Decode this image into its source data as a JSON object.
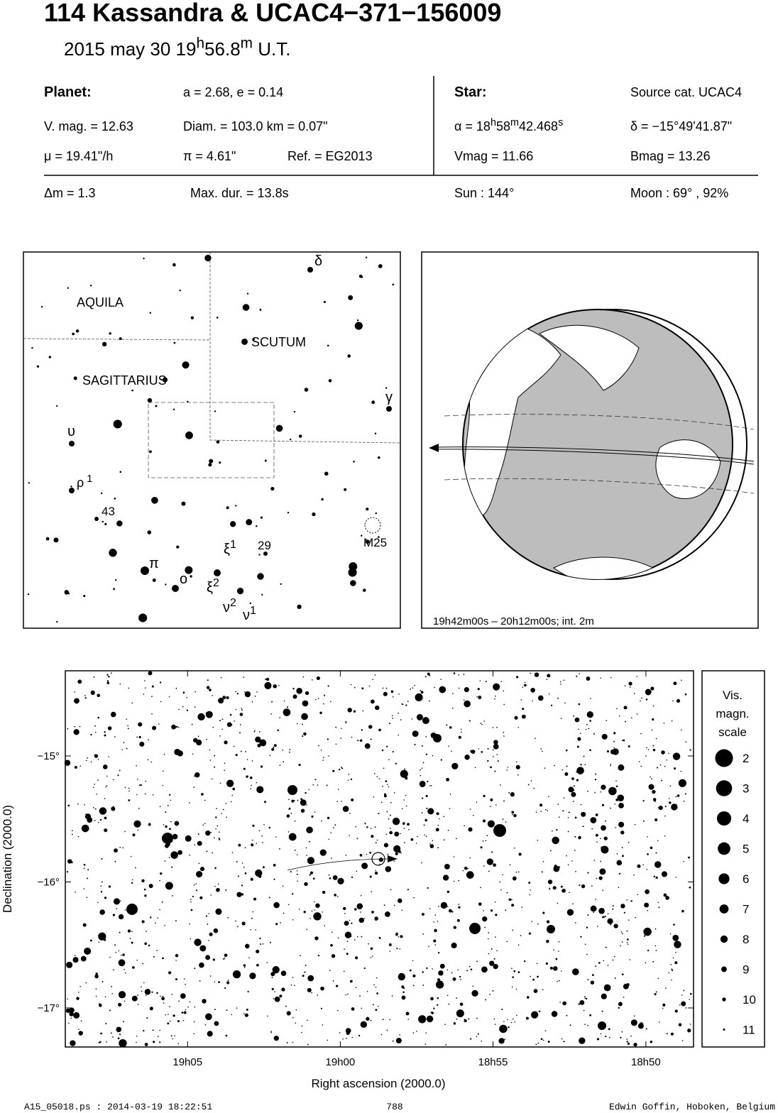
{
  "header": {
    "title": "114 Kassandra  &  UCAC4−371−156009",
    "date": [
      "2015 may 30  19",
      "h",
      "56.8",
      "m",
      " U.T."
    ]
  },
  "info": {
    "planet_label": "Planet:",
    "orbit": "a = 2.68, e = 0.14",
    "vmag": "V. mag. = 12.63",
    "diam": "Diam. = 103.0 km = 0.07\"",
    "mu": "μ =  19.41\"/h",
    "pi": "π =  4.61\"",
    "ref": "Ref. = EG2013",
    "star_label": "Star:",
    "source": "Source cat.  UCAC4",
    "ra": [
      "α = 18",
      "h",
      "58",
      "m",
      "42.468",
      "s"
    ],
    "dec": "δ = −15°49'41.87\"",
    "star_vmag": "Vmag = 11.66",
    "bmag": "Bmag = 13.26",
    "dm": "Δm = 1.3",
    "maxdur": "Max. dur. = 13.8s",
    "sun": "Sun : 144°",
    "moon": "Moon :  69° , 92%"
  },
  "finder": {
    "labels": [
      [
        "AQUILA"
      ],
      [
        "SCUTUM"
      ],
      [
        "SAGITTARIUS"
      ],
      [
        "δ"
      ],
      [
        "γ"
      ],
      [
        "υ"
      ],
      [
        "ρ",
        " 1"
      ],
      [
        "43"
      ],
      [
        "M25"
      ],
      [
        "π"
      ],
      [
        "o"
      ],
      [
        "ξ",
        "1"
      ],
      [
        "29"
      ],
      [
        "ξ",
        "2"
      ],
      [
        "ν",
        "2"
      ],
      [
        "ν",
        "1"
      ]
    ]
  },
  "globe": {
    "caption": "19h42m00s – 20h12m00s; int.  2m"
  },
  "star_chart": {
    "xlabel": "Right ascension (2000.0)",
    "ylabel": "Declination (2000.0)",
    "xlim": [
      19.15,
      18.8073
    ],
    "ylim": [
      -17.31,
      -14.324
    ],
    "xticks": [
      {
        "value": 19.0833,
        "label": "19h05"
      },
      {
        "value": 19,
        "label": "19h00"
      },
      {
        "value": 18.9167,
        "label": "18h55"
      },
      {
        "value": 18.8333,
        "label": "18h50"
      }
    ],
    "yticks": [
      {
        "value": -15,
        "label": "−15°"
      },
      {
        "value": -16,
        "label": "−16°"
      },
      {
        "value": -17,
        "label": "−17°"
      }
    ],
    "legend": {
      "title": [
        "Vis.",
        "magn.",
        "scale"
      ],
      "magnitudes": [
        2,
        3,
        4,
        5,
        6,
        7,
        8,
        9,
        10,
        11
      ]
    }
  },
  "footer": {
    "left": "A15_05018.ps : 2014-03-19 18:22:51",
    "center": "788",
    "right": "Edwin Goffin, Hoboken, Belgium"
  }
}
